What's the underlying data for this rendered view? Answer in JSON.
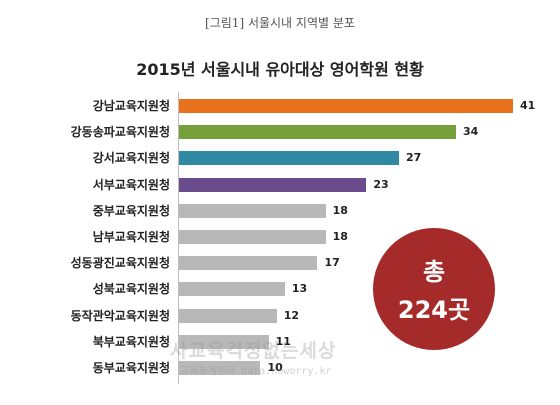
{
  "caption": "[그림1] 서울시내 지역별 분포",
  "chart_data": {
    "type": "bar",
    "orientation": "horizontal",
    "title": "2015년 서울시내 유아대상 영어학원 현황",
    "categories": [
      "강남교육지원청",
      "강동송파교육지원청",
      "강서교육지원청",
      "서부교육지원청",
      "중부교육지원청",
      "남부교육지원청",
      "성동광진교육지원청",
      "성북교육지원청",
      "동작관악교육지원청",
      "북부교육지원청",
      "동부교육지원청"
    ],
    "values": [
      41,
      34,
      27,
      23,
      18,
      18,
      17,
      13,
      12,
      11,
      10
    ],
    "colors": [
      "#e8711c",
      "#76a03a",
      "#2e8aa3",
      "#6a4b8c",
      "#b8b8b8",
      "#b8b8b8",
      "#b8b8b8",
      "#b8b8b8",
      "#b8b8b8",
      "#b8b8b8",
      "#b8b8b8"
    ],
    "xlim": [
      0,
      41
    ],
    "grid": false,
    "data_labels": true
  },
  "badge": {
    "line1": "총",
    "line2": "224곳",
    "color": "#a52a2a"
  },
  "watermark": {
    "line1": "사교육걱정없는세상",
    "line2": "교육통계센터 data.noworry.kr"
  }
}
